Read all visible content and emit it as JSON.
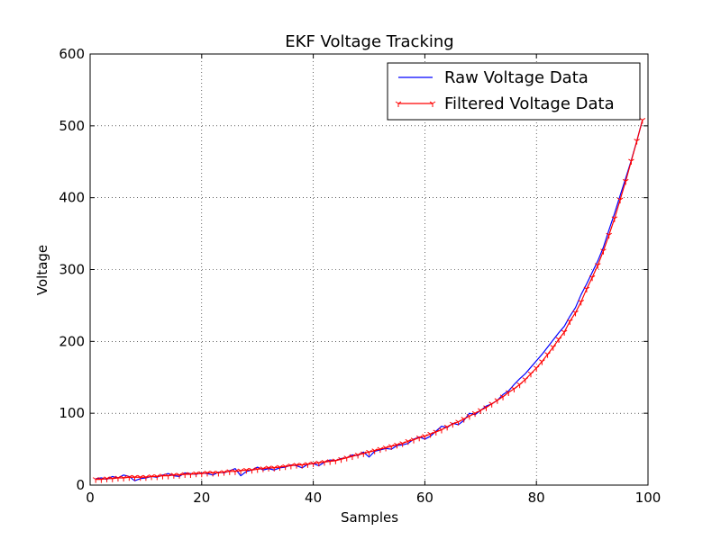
{
  "chart_data": {
    "type": "line",
    "title": "EKF Voltage Tracking",
    "xlabel": "Samples",
    "ylabel": "Voltage",
    "xlim": [
      0,
      100
    ],
    "ylim": [
      0,
      600
    ],
    "xticks": [
      0,
      20,
      40,
      60,
      80,
      100
    ],
    "xtick_labels": [
      "0",
      "20",
      "40",
      "60",
      "80",
      "100"
    ],
    "yticks": [
      0,
      100,
      200,
      300,
      400,
      500,
      600
    ],
    "ytick_labels": [
      "0",
      "100",
      "200",
      "300",
      "400",
      "500",
      "600"
    ],
    "grid": true,
    "legend_position": "top-right",
    "x": [
      1,
      2,
      3,
      4,
      5,
      6,
      7,
      8,
      9,
      10,
      11,
      12,
      13,
      14,
      15,
      16,
      17,
      18,
      19,
      20,
      21,
      22,
      23,
      24,
      25,
      26,
      27,
      28,
      29,
      30,
      31,
      32,
      33,
      34,
      35,
      36,
      37,
      38,
      39,
      40,
      41,
      42,
      43,
      44,
      45,
      46,
      47,
      48,
      49,
      50,
      51,
      52,
      53,
      54,
      55,
      56,
      57,
      58,
      59,
      60,
      61,
      62,
      63,
      64,
      65,
      66,
      67,
      68,
      69,
      70,
      71,
      72,
      73,
      74,
      75,
      76,
      77,
      78,
      79,
      80,
      81,
      82,
      83,
      84,
      85,
      86,
      87,
      88,
      89,
      90,
      91,
      92,
      93,
      94,
      95,
      96,
      97,
      98,
      99
    ],
    "series": [
      {
        "name": "Raw Voltage Data",
        "color": "#0000ff",
        "marker": "none",
        "values": [
          9,
          10,
          8,
          12,
          10,
          14,
          12,
          6,
          9,
          10,
          12,
          11,
          14,
          16,
          13,
          12,
          17,
          16,
          15,
          17,
          16,
          14,
          18,
          17,
          20,
          23,
          13,
          19,
          21,
          25,
          21,
          23,
          21,
          24,
          25,
          28,
          27,
          24,
          29,
          30,
          27,
          32,
          35,
          34,
          37,
          38,
          42,
          41,
          46,
          39,
          47,
          49,
          51,
          50,
          55,
          56,
          58,
          64,
          67,
          64,
          68,
          75,
          82,
          80,
          86,
          84,
          90,
          100,
          98,
          104,
          110,
          113,
          118,
          126,
          131,
          140,
          148,
          155,
          164,
          173,
          182,
          192,
          202,
          212,
          221,
          235,
          247,
          265,
          280,
          296,
          312,
          331,
          355,
          378,
          403,
          427,
          452,
          479,
          508
        ]
      },
      {
        "name": "Filtered Voltage Data",
        "color": "#ff0000",
        "marker": "tri_down",
        "values": [
          8,
          8,
          9,
          9,
          10,
          10,
          11,
          11,
          11,
          11,
          12,
          12,
          13,
          13,
          14,
          14,
          15,
          15,
          16,
          16,
          17,
          17,
          17,
          18,
          19,
          19,
          20,
          21,
          21,
          22,
          23,
          24,
          24,
          25,
          26,
          27,
          28,
          28,
          29,
          30,
          31,
          32,
          33,
          34,
          36,
          38,
          40,
          42,
          44,
          46,
          48,
          50,
          52,
          54,
          56,
          58,
          61,
          63,
          66,
          68,
          71,
          74,
          77,
          81,
          85,
          88,
          92,
          96,
          100,
          104,
          108,
          113,
          118,
          123,
          129,
          134,
          140,
          147,
          155,
          163,
          172,
          182,
          192,
          203,
          213,
          228,
          240,
          255,
          273,
          289,
          306,
          326,
          348,
          371,
          397,
          423,
          451,
          479,
          508
        ]
      }
    ]
  }
}
